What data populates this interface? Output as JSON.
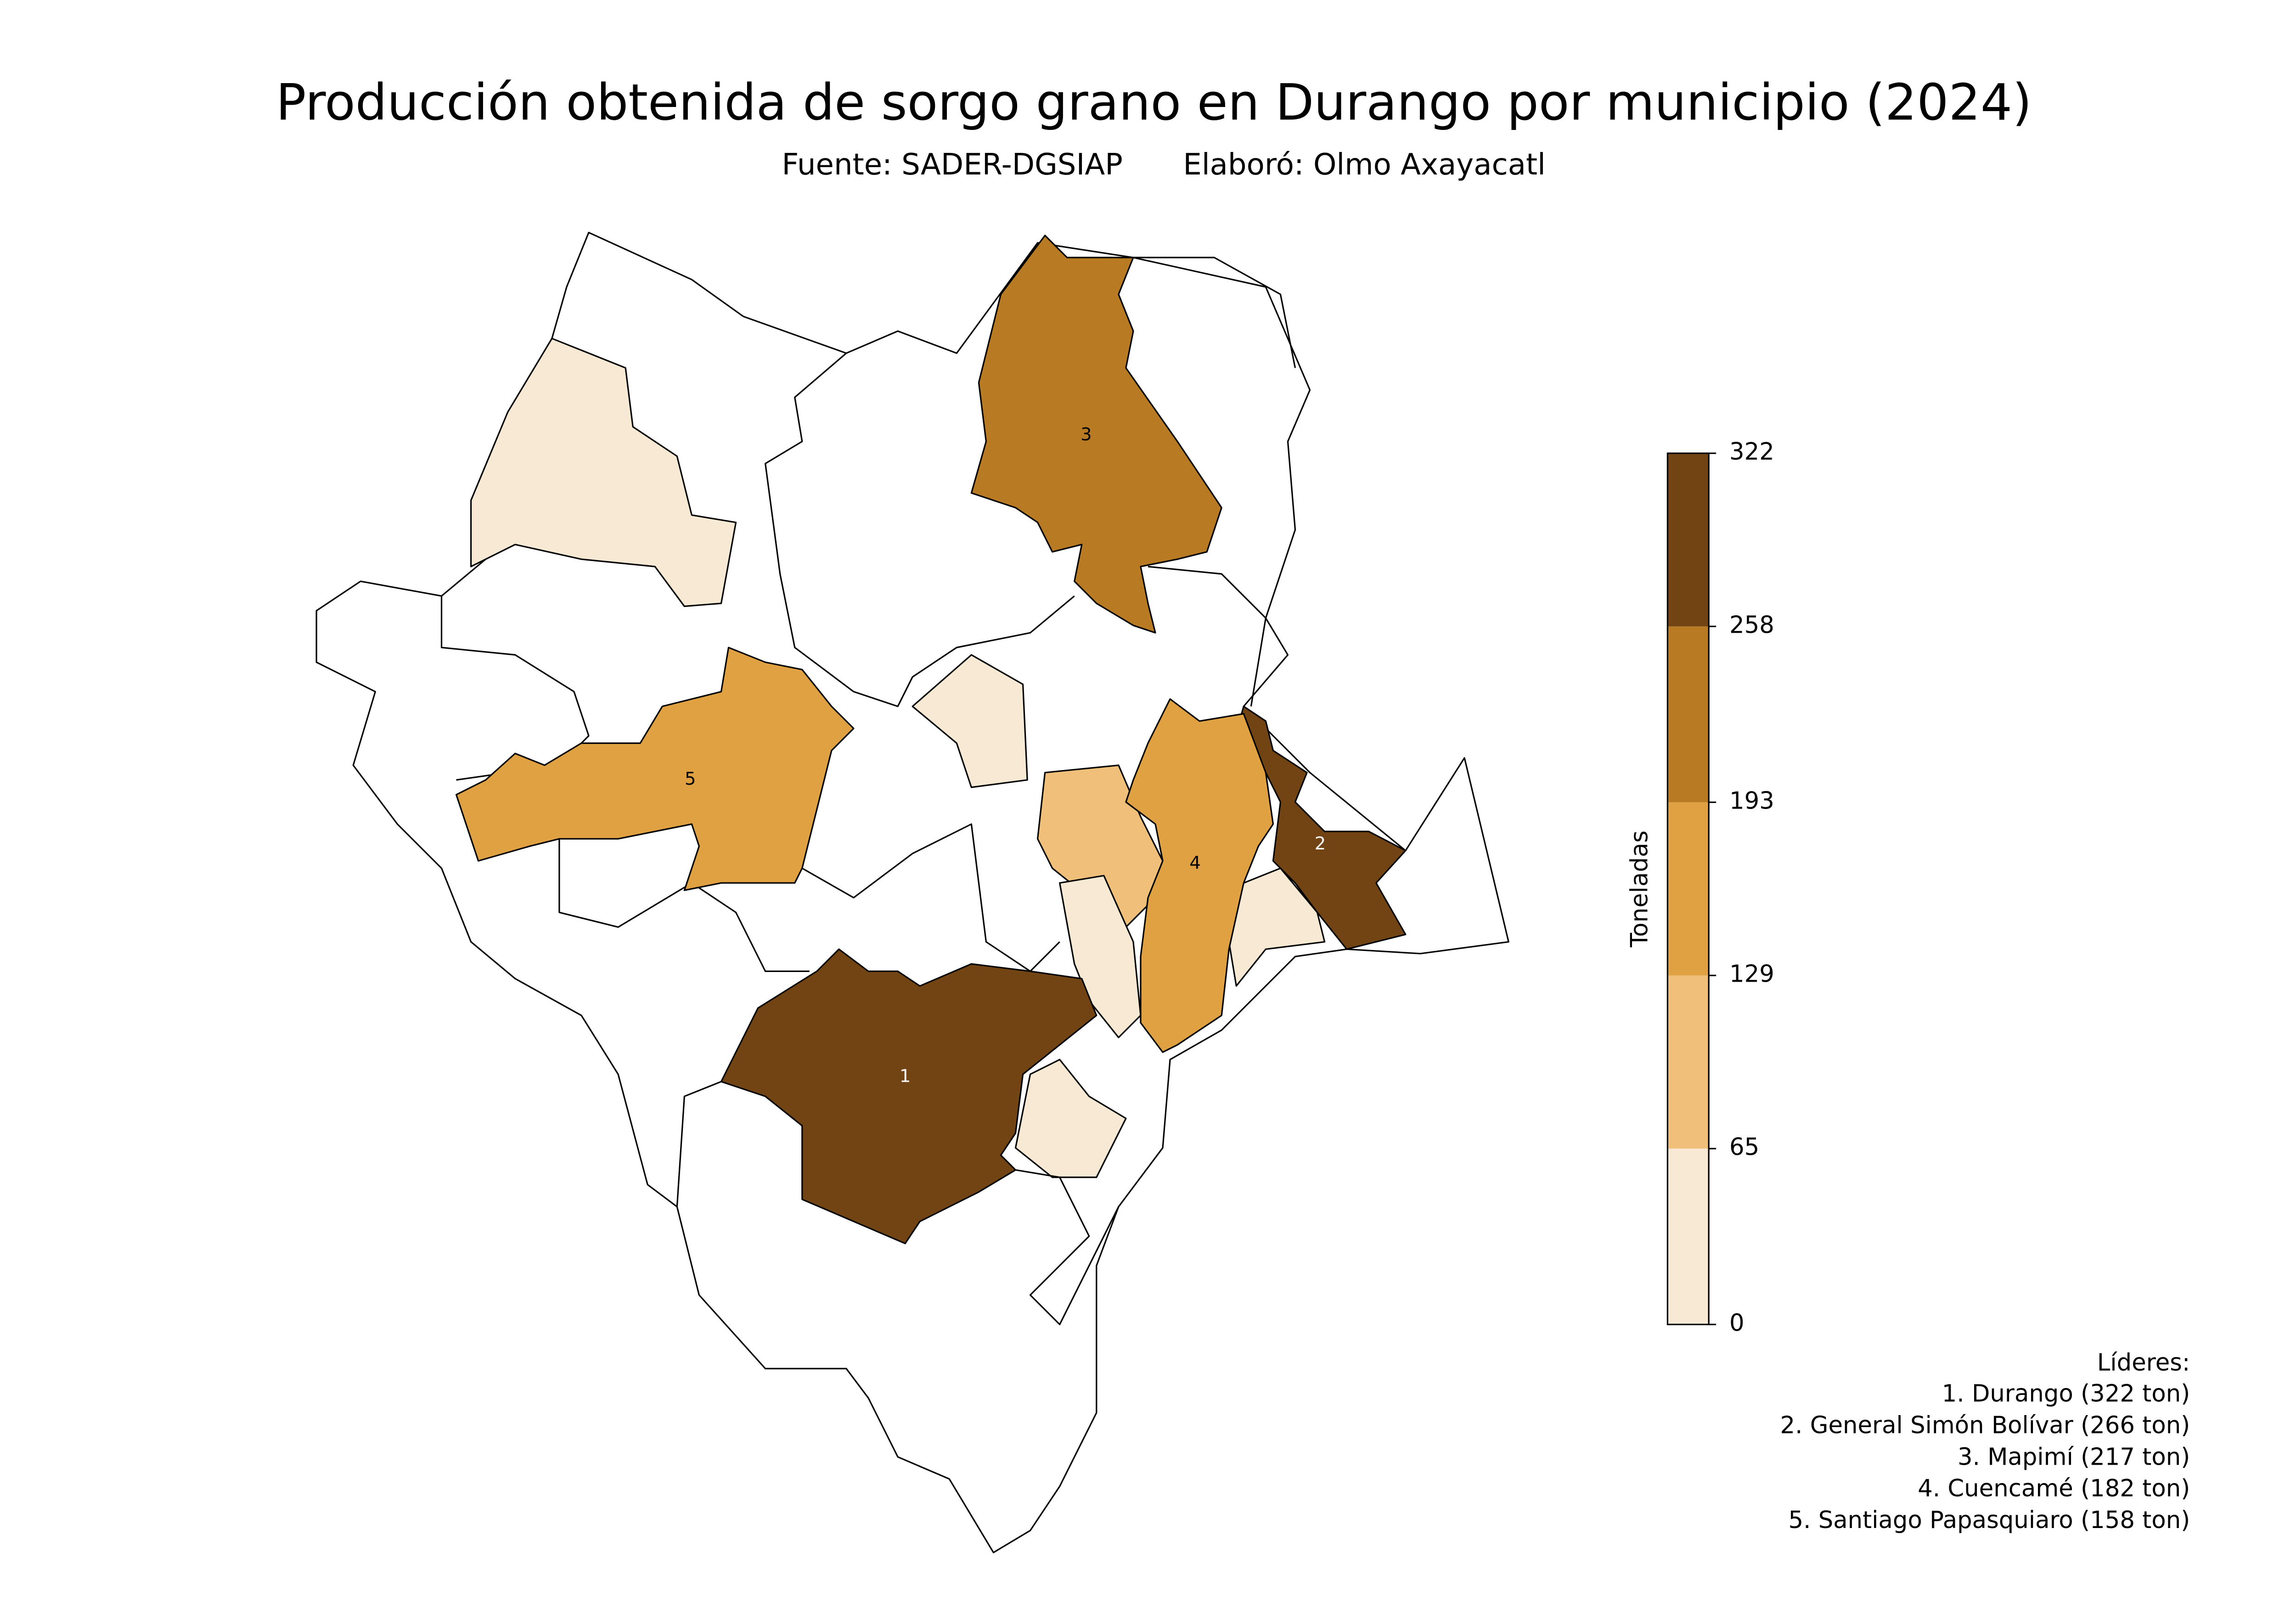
{
  "chart_data": {
    "type": "choropleth",
    "title": "Producción obtenida de sorgo grano en Durango por municipio (2024)",
    "source": "Fuente: SADER-DGSIAP",
    "author": "Elaboró: Olmo Axayacatl",
    "colorbar_label": "Toneladas",
    "ylim": [
      0,
      322
    ],
    "yticks": [
      0,
      65,
      129,
      193,
      258,
      322
    ],
    "colors": [
      "#f8e9d4",
      "#f0c07a",
      "#dfa142",
      "#b87a22",
      "#734413"
    ],
    "legend_title": "Líderes:",
    "leaders": [
      {
        "rank": 1,
        "name": "Durango",
        "value": 322,
        "label": "1. Durango (322 ton)"
      },
      {
        "rank": 2,
        "name": "General Simón Bolívar",
        "value": 266,
        "label": "2. General Simón Bolívar (266 ton)"
      },
      {
        "rank": 3,
        "name": "Mapimí",
        "value": 217,
        "label": "3. Mapimí (217 ton)"
      },
      {
        "rank": 4,
        "name": "Cuencamé",
        "value": 182,
        "label": "4. Cuencamé (182 ton)"
      },
      {
        "rank": 5,
        "name": "Santiago Papasquiaro",
        "value": 158,
        "label": "5. Santiago Papasquiaro (158 ton)"
      }
    ]
  }
}
